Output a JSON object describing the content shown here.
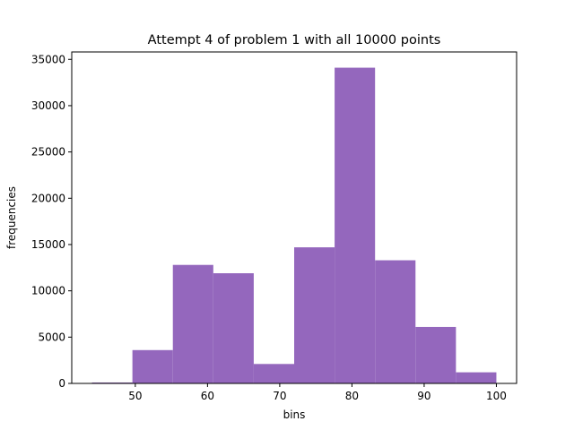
{
  "chart_data": {
    "type": "bar",
    "title": "Attempt 4 of problem 1 with all 10000 points",
    "xlabel": "bins",
    "ylabel": "frequencies",
    "bar_color": "#9467bd",
    "bin_edges": [
      44.0,
      49.6,
      55.2,
      60.8,
      66.4,
      72.0,
      77.6,
      83.2,
      88.8,
      94.4,
      100.0
    ],
    "values": [
      100,
      3600,
      12800,
      11900,
      2100,
      14700,
      34100,
      13300,
      6100,
      1200
    ],
    "xlim": [
      41.2,
      102.8
    ],
    "ylim": [
      0,
      35800
    ],
    "xticks": [
      50,
      60,
      70,
      80,
      90,
      100
    ],
    "yticks": [
      0,
      5000,
      10000,
      15000,
      20000,
      25000,
      30000,
      35000
    ],
    "grid": false,
    "legend": false
  }
}
